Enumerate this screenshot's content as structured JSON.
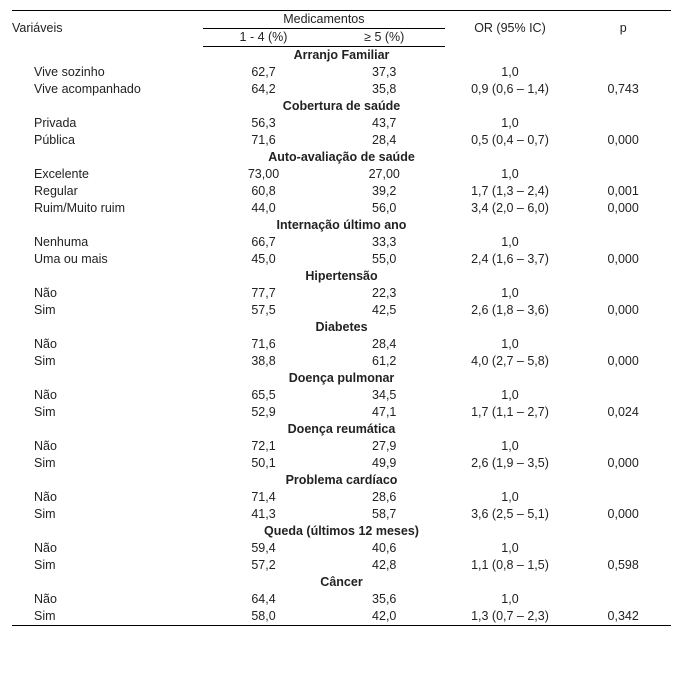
{
  "header": {
    "variables": "Variáveis",
    "meds_group": "Medicamentos",
    "meds_1_4": "1 - 4 (%)",
    "meds_5": "≥ 5 (%)",
    "or": "OR (95% IC)",
    "p": "p"
  },
  "sections": [
    {
      "title": "Arranjo Familiar",
      "rows": [
        {
          "label": "Vive sozinho",
          "m1": "62,7",
          "m2": "37,3",
          "or": "1,0",
          "p": ""
        },
        {
          "label": "Vive acompanhado",
          "m1": "64,2",
          "m2": "35,8",
          "or": "0,9 (0,6 – 1,4)",
          "p": "0,743"
        }
      ]
    },
    {
      "title": "Cobertura de saúde",
      "rows": [
        {
          "label": "Privada",
          "m1": "56,3",
          "m2": "43,7",
          "or": "1,0",
          "p": ""
        },
        {
          "label": "Pública",
          "m1": "71,6",
          "m2": "28,4",
          "or": "0,5 (0,4 – 0,7)",
          "p": "0,000"
        }
      ]
    },
    {
      "title": "Auto-avaliação de saúde",
      "rows": [
        {
          "label": "Excelente",
          "m1": "73,00",
          "m2": "27,00",
          "or": "1,0",
          "p": ""
        },
        {
          "label": "Regular",
          "m1": "60,8",
          "m2": "39,2",
          "or": "1,7 (1,3 – 2,4)",
          "p": "0,001"
        },
        {
          "label": "Ruim/Muito ruim",
          "m1": "44,0",
          "m2": "56,0",
          "or": "3,4 (2,0 – 6,0)",
          "p": "0,000"
        }
      ]
    },
    {
      "title": "Internação último ano",
      "rows": [
        {
          "label": "Nenhuma",
          "m1": "66,7",
          "m2": "33,3",
          "or": "1,0",
          "p": ""
        },
        {
          "label": "Uma ou mais",
          "m1": "45,0",
          "m2": "55,0",
          "or": "2,4 (1,6 – 3,7)",
          "p": "0,000"
        }
      ]
    },
    {
      "title": "Hipertensão",
      "rows": [
        {
          "label": "Não",
          "m1": "77,7",
          "m2": "22,3",
          "or": "1,0",
          "p": ""
        },
        {
          "label": "Sim",
          "m1": "57,5",
          "m2": "42,5",
          "or": "2,6 (1,8 – 3,6)",
          "p": "0,000"
        }
      ]
    },
    {
      "title": "Diabetes",
      "rows": [
        {
          "label": "Não",
          "m1": "71,6",
          "m2": "28,4",
          "or": "1,0",
          "p": ""
        },
        {
          "label": "Sim",
          "m1": "38,8",
          "m2": "61,2",
          "or": "4,0 (2,7 – 5,8)",
          "p": "0,000"
        }
      ]
    },
    {
      "title": "Doença pulmonar",
      "rows": [
        {
          "label": "Não",
          "m1": "65,5",
          "m2": "34,5",
          "or": "1,0",
          "p": ""
        },
        {
          "label": "Sim",
          "m1": "52,9",
          "m2": "47,1",
          "or": "1,7 (1,1 – 2,7)",
          "p": "0,024"
        }
      ]
    },
    {
      "title": "Doença reumática",
      "rows": [
        {
          "label": "Não",
          "m1": "72,1",
          "m2": "27,9",
          "or": "1,0",
          "p": ""
        },
        {
          "label": "Sim",
          "m1": "50,1",
          "m2": "49,9",
          "or": "2,6 (1,9 – 3,5)",
          "p": "0,000"
        }
      ]
    },
    {
      "title": "Problema cardíaco",
      "rows": [
        {
          "label": "Não",
          "m1": "71,4",
          "m2": "28,6",
          "or": "1,0",
          "p": ""
        },
        {
          "label": "Sim",
          "m1": "41,3",
          "m2": "58,7",
          "or": "3,6 (2,5 – 5,1)",
          "p": "0,000"
        }
      ]
    },
    {
      "title": "Queda (últimos 12 meses)",
      "rows": [
        {
          "label": "Não",
          "m1": "59,4",
          "m2": "40,6",
          "or": "1,0",
          "p": ""
        },
        {
          "label": "Sim",
          "m1": "57,2",
          "m2": "42,8",
          "or": "1,1 (0,8 – 1,5)",
          "p": "0,598"
        }
      ]
    },
    {
      "title": "Câncer",
      "rows": [
        {
          "label": "Não",
          "m1": "64,4",
          "m2": "35,6",
          "or": "1,0",
          "p": ""
        },
        {
          "label": "Sim",
          "m1": "58,0",
          "m2": "42,0",
          "or": "1,3 (0,7 – 2,3)",
          "p": "0,342"
        }
      ]
    }
  ]
}
